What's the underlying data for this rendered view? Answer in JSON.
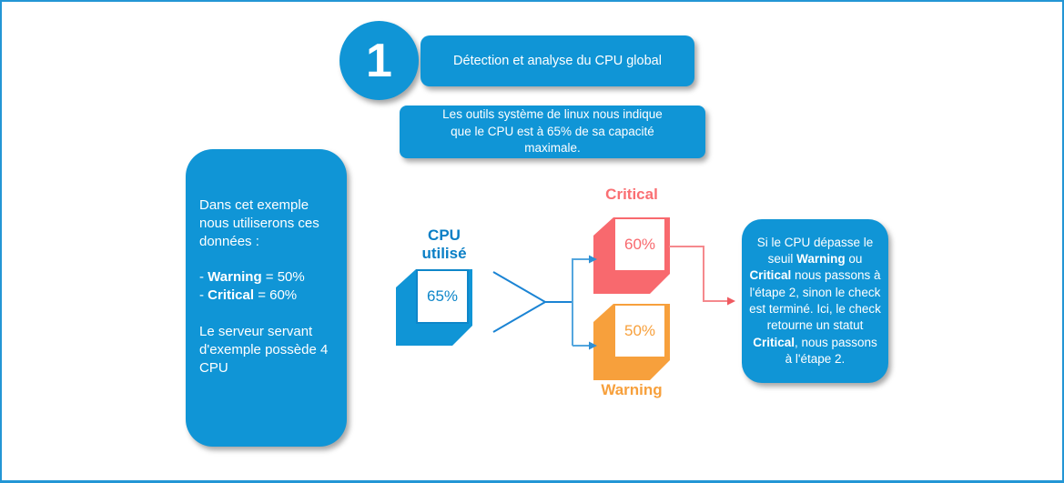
{
  "colors": {
    "primary_blue": "#1095d6",
    "dark_blue_accent": "#0a7fc6",
    "critical_red": "#f8696e",
    "warning_orange": "#f7a03c",
    "branch_line_blue": "#54a6de",
    "chevron_line_blue": "#1b84d4",
    "critical_link_pink": "#f5898d",
    "page_border_blue": "#2396d5"
  },
  "step": {
    "number": "1",
    "title": "Détection et analyse du CPU global"
  },
  "subtitle": {
    "segments": [
      {
        "t": "Les outils système de linux nous indique"
      },
      {
        "br": true
      },
      {
        "t": "que le CPU est à 65% de sa capacité"
      },
      {
        "br": true
      },
      {
        "t": "maximale."
      }
    ]
  },
  "left_note": {
    "paragraphs": [
      {
        "segments": [
          {
            "t": "Dans cet exemple nous utiliserons ces données :"
          }
        ]
      },
      {
        "segments": [
          {
            "t": "- "
          },
          {
            "t": "Warning",
            "b": true
          },
          {
            "t": " = 50%"
          },
          {
            "br": true
          },
          {
            "t": "- "
          },
          {
            "t": "Critical",
            "b": true
          },
          {
            "t": " = 60%"
          }
        ]
      },
      {
        "segments": [
          {
            "t": "Le serveur servant d'exemple possède 4 CPU"
          }
        ]
      }
    ]
  },
  "cpu": {
    "label_lines": [
      {
        "t": "CPU"
      },
      {
        "br": true
      },
      {
        "t": "utilisé"
      }
    ],
    "value": "65%"
  },
  "critical": {
    "label": "Critical",
    "value": "60%"
  },
  "warning": {
    "label": "Warning",
    "value": "50%"
  },
  "right_note": {
    "segments": [
      {
        "t": "Si le CPU dépasse le seuil "
      },
      {
        "t": "Warning",
        "b": true
      },
      {
        "t": " ou "
      },
      {
        "t": "Critical",
        "b": true
      },
      {
        "t": " nous passons à l'étape 2, sinon le check est terminé. Ici, le check retourne un statut "
      },
      {
        "t": "Critical",
        "b": true
      },
      {
        "t": ", nous passons à l'étape 2."
      }
    ]
  }
}
